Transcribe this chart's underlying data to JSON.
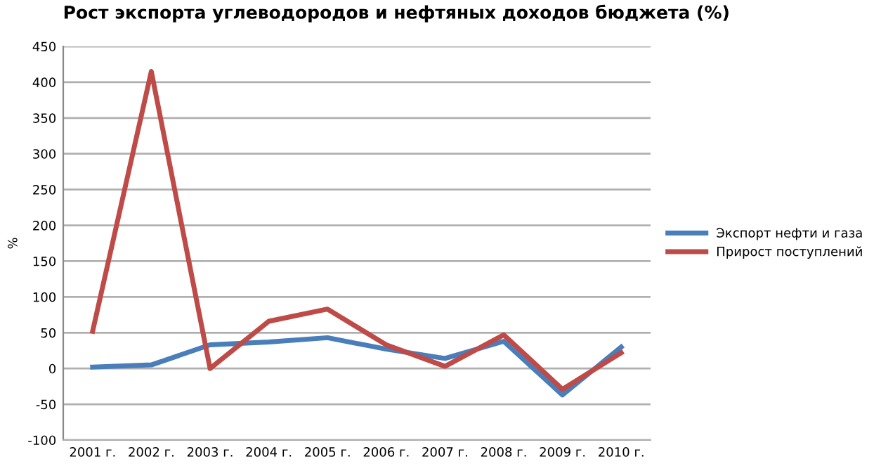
{
  "chart_data": {
    "type": "line",
    "title": "Рост экспорта углеводородов и нефтяных доходов бюджета (%)",
    "ylabel": "%",
    "categories": [
      "2001 г.",
      "2002 г.",
      "2003 г.",
      "2004 г.",
      "2005 г.",
      "2006 г.",
      "2007 г.",
      "2008 г.",
      "2009 г.",
      "2010 г."
    ],
    "series": [
      {
        "name": "Экспорт нефти и газа",
        "color": "#4a7ebb",
        "values": [
          2,
          5,
          33,
          37,
          43,
          27,
          14,
          38,
          -37,
          30
        ]
      },
      {
        "name": "Прирост поступлений",
        "color": "#be4b48",
        "values": [
          52,
          415,
          0,
          66,
          83,
          33,
          3,
          47,
          -29,
          22
        ]
      }
    ],
    "ylim": [
      -100,
      450
    ],
    "yticks": [
      -100,
      -50,
      0,
      50,
      100,
      150,
      200,
      250,
      300,
      350,
      400,
      450
    ],
    "grid": "y",
    "legend": "right",
    "marker": "none",
    "line_style": "solid"
  }
}
